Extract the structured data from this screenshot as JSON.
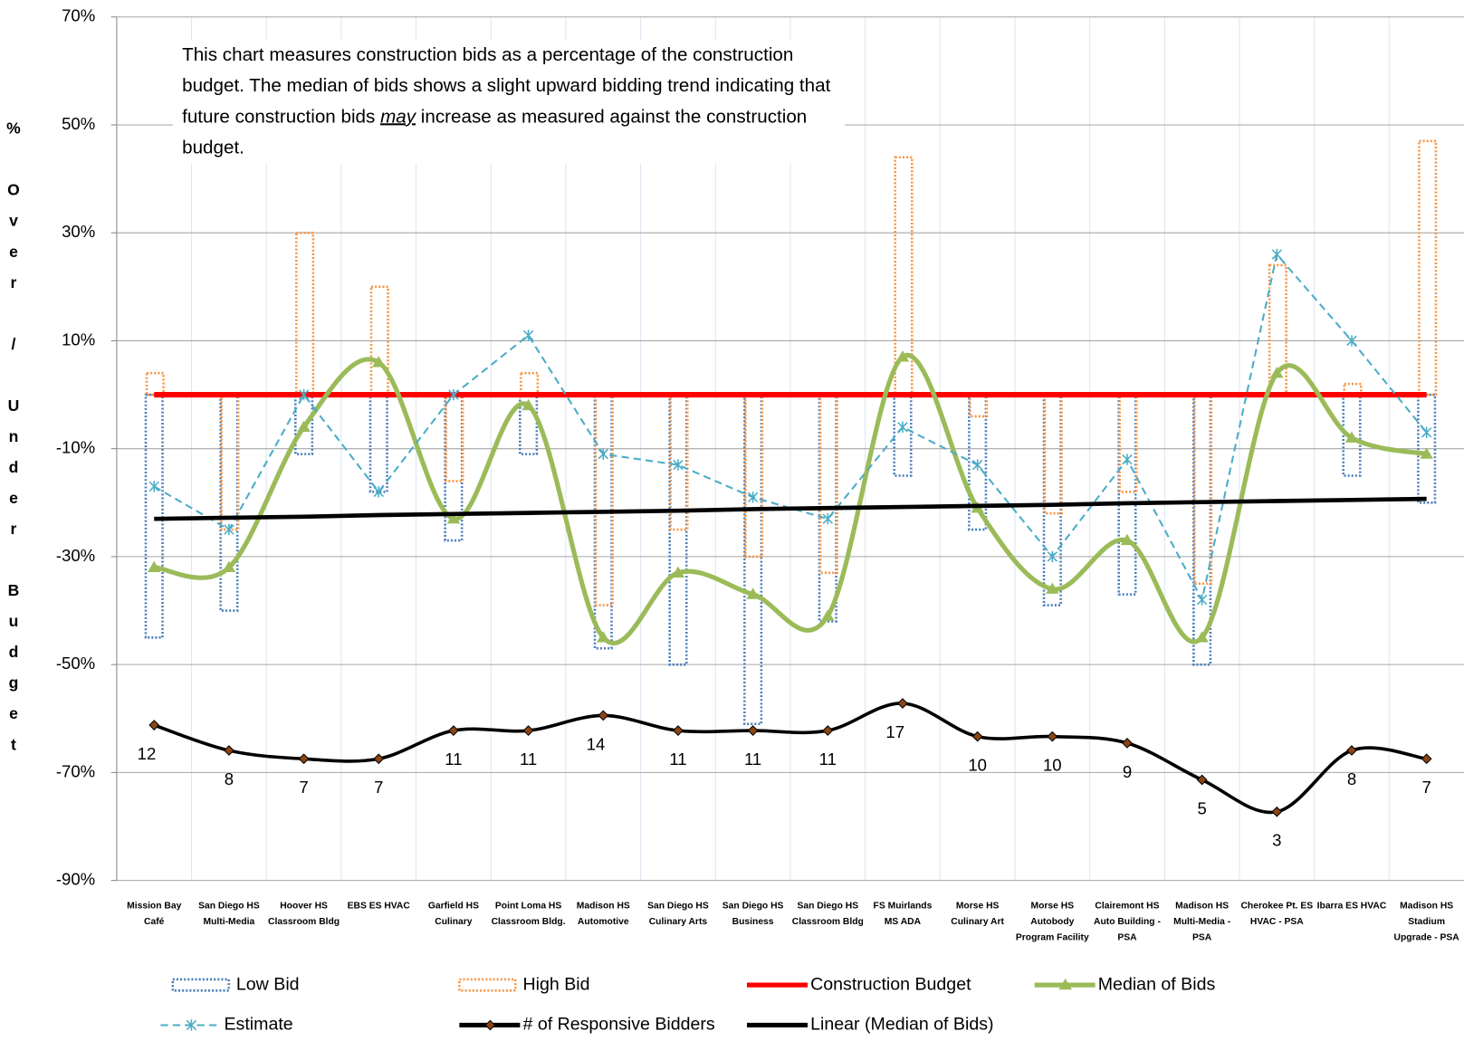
{
  "chart_data": {
    "type": "bar",
    "y_axis_label": "% Over / Under Budget",
    "annotation": [
      "This chart measures construction bids as a percentage of the construction budget.  The median of bids shows a slight upward bidding trend indicating that future construction bids",
      "may",
      "increase as measured against the construction budget."
    ],
    "categories": [
      "Mission Bay Café",
      "San Diego HS Multi-Media",
      "Hoover HS Classroom Bldg",
      "EBS ES HVAC",
      "Garfield HS Culinary",
      "Point Loma HS Classroom Bldg.",
      "Madison HS Automotive",
      "San Diego HS Culinary Arts",
      "San Diego HS Business",
      "San Diego HS Classroom Bldg",
      "FS Muirlands MS ADA",
      "Morse HS Culinary Art",
      "Morse HS Autobody Program Facility",
      "Clairemont HS Auto Building - PSA",
      "Madison HS Multi-Media - PSA",
      "Cherokee Pt. ES HVAC - PSA",
      "Ibarra ES HVAC",
      "Madison HS Stadium Upgrade - PSA"
    ],
    "ylim": [
      -90,
      70
    ],
    "yticks": [
      {
        "value": -90,
        "label": "-90%"
      },
      {
        "value": -70,
        "label": "-70%"
      },
      {
        "value": -50,
        "label": "-50%"
      },
      {
        "value": -30,
        "label": "-30%"
      },
      {
        "value": -10,
        "label": "-10%"
      },
      {
        "value": 10,
        "label": "10%"
      },
      {
        "value": 30,
        "label": "30%"
      },
      {
        "value": 50,
        "label": "50%"
      },
      {
        "value": 70,
        "label": "70%"
      }
    ],
    "y2lim": [
      1,
      1000000
    ],
    "y2log": true,
    "grid": true,
    "series": [
      {
        "name": "Low Bid",
        "type": "bar",
        "color": "#4a7ebb",
        "values": [
          -45,
          -40,
          -11,
          -18,
          -27,
          -11,
          -47,
          -50,
          -61,
          -42,
          -15,
          -25,
          -39,
          -37,
          -50,
          0,
          -15,
          -20
        ]
      },
      {
        "name": "High Bid",
        "type": "bar",
        "color": "#f79646",
        "values": [
          4,
          -25,
          30,
          20,
          -16,
          4,
          -39,
          -25,
          -30,
          -33,
          44,
          -4,
          -22,
          -18,
          -35,
          24,
          2,
          47
        ]
      },
      {
        "name": "Construction Budget",
        "type": "line",
        "color": "#ff0000",
        "values": [
          0,
          0,
          0,
          0,
          0,
          0,
          0,
          0,
          0,
          0,
          0,
          0,
          0,
          0,
          0,
          0,
          0,
          0
        ]
      },
      {
        "name": "Median of Bids",
        "type": "line",
        "smooth": true,
        "marker": "triangle",
        "color": "#9bbb59",
        "values": [
          -32,
          -32,
          -6,
          6,
          -23,
          -2,
          -45,
          -33,
          -37,
          -41,
          7,
          -21,
          -36,
          -27,
          -45,
          4,
          -8,
          -11
        ]
      },
      {
        "name": "Estimate",
        "type": "line",
        "dashed": true,
        "marker": "star",
        "color": "#4bacc6",
        "values": [
          -17,
          -25,
          0,
          -18,
          0,
          11,
          -11,
          -13,
          -19,
          -23,
          -6,
          -13,
          -30,
          -12,
          -38,
          26,
          10,
          -7
        ]
      },
      {
        "name": "# of Responsive Bidders",
        "type": "line",
        "smooth": true,
        "marker": "diamond",
        "axis": "y2",
        "data_labels": true,
        "color": "#000000",
        "values": [
          12,
          8,
          7,
          7,
          11,
          11,
          14,
          11,
          11,
          11,
          17,
          10,
          10,
          9,
          5,
          3,
          8,
          7
        ]
      },
      {
        "name": "Linear (Median of Bids)",
        "type": "line",
        "color": "#000000",
        "values": [
          -23.0,
          -22.8,
          -22.6,
          -22.3,
          -22.1,
          -21.9,
          -21.7,
          -21.5,
          -21.2,
          -21.0,
          -20.8,
          -20.6,
          -20.4,
          -20.1,
          -19.9,
          -19.7,
          -19.5,
          -19.3
        ]
      }
    ]
  }
}
